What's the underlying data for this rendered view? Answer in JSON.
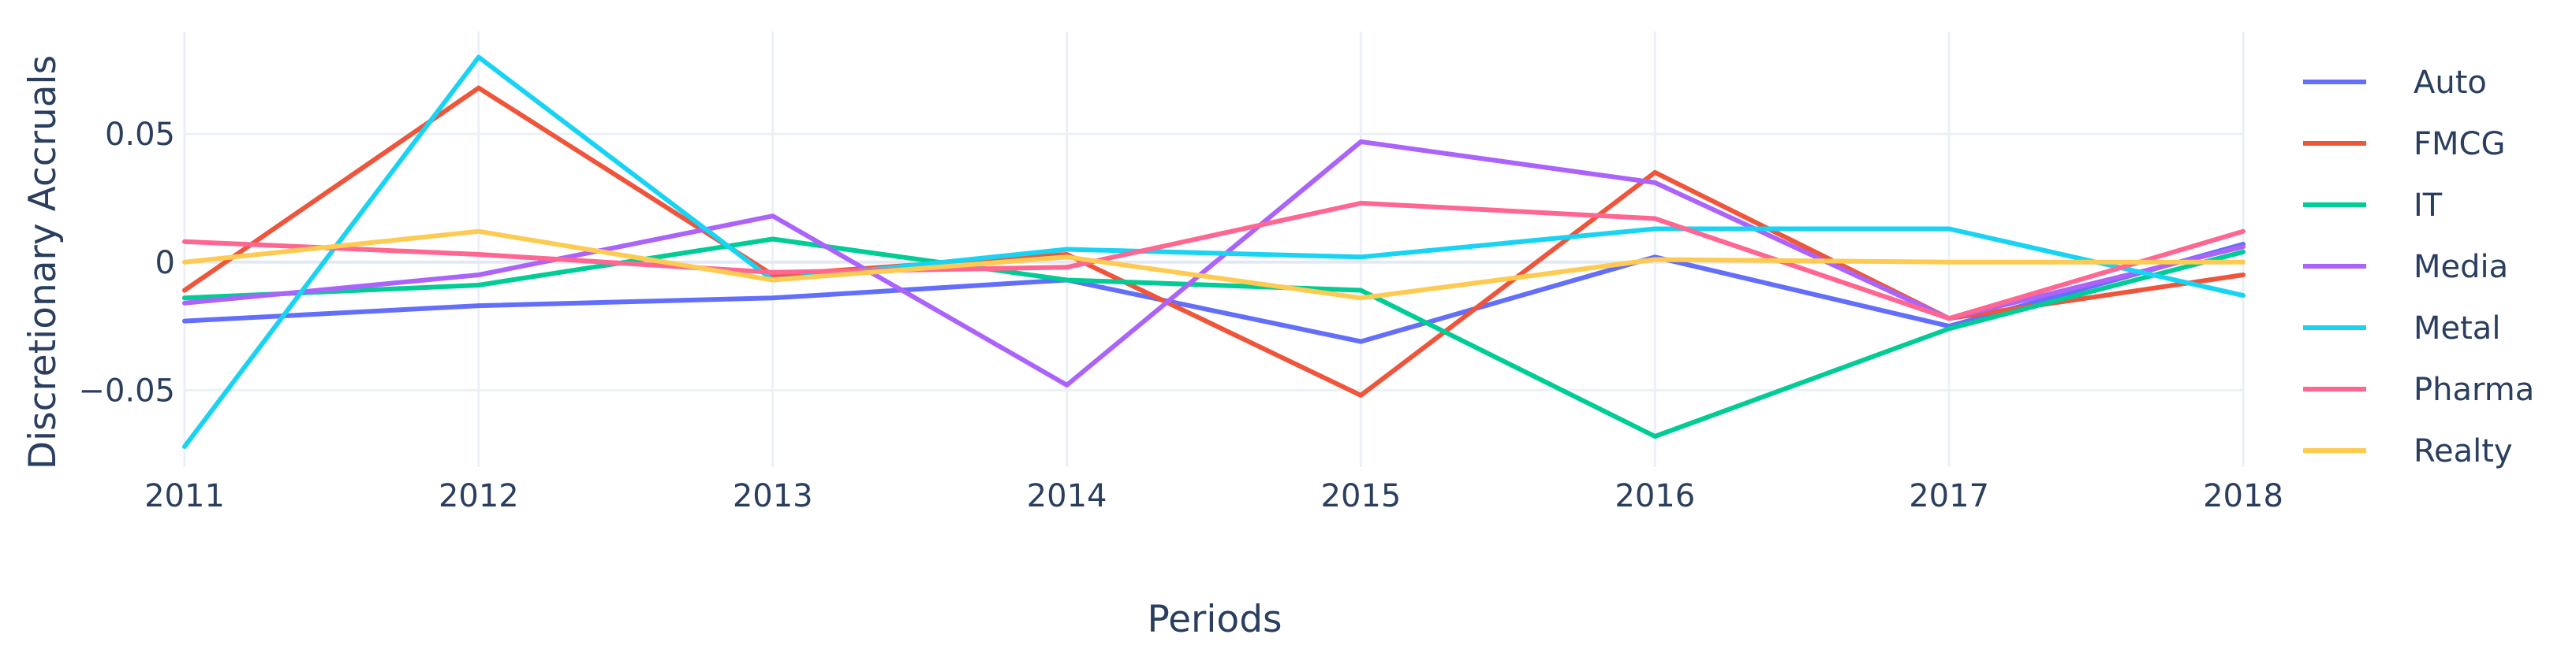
{
  "chart_data": {
    "type": "line",
    "title": "",
    "xlabel": "Periods",
    "ylabel": "Discretionary Accruals",
    "x": [
      2011,
      2012,
      2013,
      2014,
      2015,
      2016,
      2017,
      2018
    ],
    "xlim": [
      2011,
      2018
    ],
    "ylim": [
      -0.08,
      0.09
    ],
    "y_ticks": [
      0.05,
      0,
      -0.05
    ],
    "y_tick_labels": [
      "0.05",
      "0",
      "−0.05"
    ],
    "x_tick_labels": [
      "2011",
      "2012",
      "2013",
      "2014",
      "2015",
      "2016",
      "2017",
      "2018"
    ],
    "grid": true,
    "legend_position": "right",
    "series": [
      {
        "name": "Auto",
        "color": "#636efa",
        "values": [
          -0.023,
          -0.017,
          -0.014,
          -0.007,
          -0.031,
          0.002,
          -0.025,
          0.007
        ]
      },
      {
        "name": "FMCG",
        "color": "#ef553b",
        "values": [
          -0.011,
          0.068,
          -0.005,
          0.003,
          -0.052,
          0.035,
          -0.022,
          -0.005
        ]
      },
      {
        "name": "IT",
        "color": "#00cc96",
        "values": [
          -0.014,
          -0.009,
          0.009,
          -0.007,
          -0.011,
          -0.068,
          -0.026,
          0.004
        ]
      },
      {
        "name": "Media",
        "color": "#ab63fa",
        "values": [
          -0.016,
          -0.005,
          0.018,
          -0.048,
          0.047,
          0.031,
          -0.022,
          0.006
        ]
      },
      {
        "name": "Metal",
        "color": "#19d3f3",
        "values": [
          -0.072,
          0.08,
          -0.007,
          0.005,
          0.002,
          0.013,
          0.013,
          -0.013
        ]
      },
      {
        "name": "Pharma",
        "color": "#ff6692",
        "values": [
          0.008,
          0.003,
          -0.004,
          -0.002,
          0.023,
          0.017,
          -0.022,
          0.012
        ]
      },
      {
        "name": "Realty",
        "color": "#fecb52",
        "values": [
          0.0,
          0.012,
          -0.007,
          0.002,
          -0.014,
          0.001,
          0.0,
          0.0
        ]
      }
    ]
  }
}
